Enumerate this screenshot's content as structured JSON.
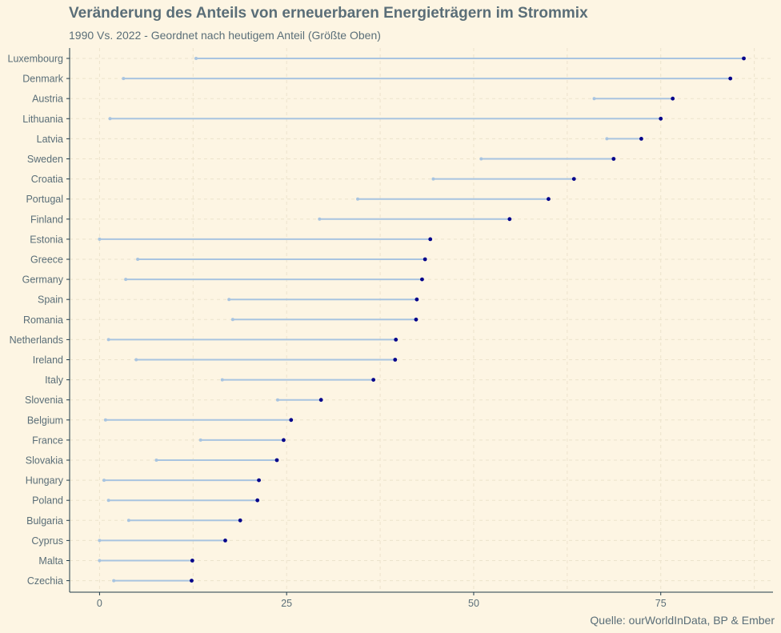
{
  "chart_data": {
    "type": "dumbbell",
    "title": "Veränderung des Anteils von erneuerbaren Energieträgern im Strommix",
    "subtitle": "1990 Vs. 2022 - Geordnet nach heutigem Anteil (Größte Oben)",
    "caption": "Quelle: ourWorldInData, BP & Ember",
    "xlim": [
      -4,
      90
    ],
    "x_ticks": [
      0,
      25,
      50,
      75
    ],
    "grid": true,
    "colors": {
      "background": "#fdf5e3",
      "segment": "#a8c4e0",
      "start_point": "#a8c4e0",
      "end_point": "#00008b",
      "grid": "#ece3cc",
      "text": "#5a6e78"
    },
    "countries": [
      "Luxembourg",
      "Denmark",
      "Austria",
      "Lithuania",
      "Latvia",
      "Sweden",
      "Croatia",
      "Portugal",
      "Finland",
      "Estonia",
      "Greece",
      "Germany",
      "Spain",
      "Romania",
      "Netherlands",
      "Ireland",
      "Italy",
      "Slovenia",
      "Belgium",
      "France",
      "Slovakia",
      "Hungary",
      "Poland",
      "Bulgaria",
      "Cyprus",
      "Malta",
      "Czechia"
    ],
    "values_1990": [
      12.9,
      3.2,
      66.1,
      1.4,
      67.8,
      51.0,
      44.6,
      34.5,
      29.4,
      0.0,
      5.1,
      3.5,
      17.3,
      17.8,
      1.2,
      4.9,
      16.4,
      23.8,
      0.8,
      13.5,
      7.6,
      0.6,
      1.2,
      3.9,
      0.0,
      0.0,
      1.9
    ],
    "values_2022": [
      86.1,
      84.3,
      76.6,
      75.0,
      72.4,
      68.7,
      63.4,
      60.0,
      54.8,
      44.2,
      43.5,
      43.1,
      42.4,
      42.3,
      39.6,
      39.5,
      36.6,
      29.6,
      25.6,
      24.6,
      23.7,
      21.3,
      21.1,
      18.8,
      16.8,
      12.4,
      12.3
    ]
  }
}
